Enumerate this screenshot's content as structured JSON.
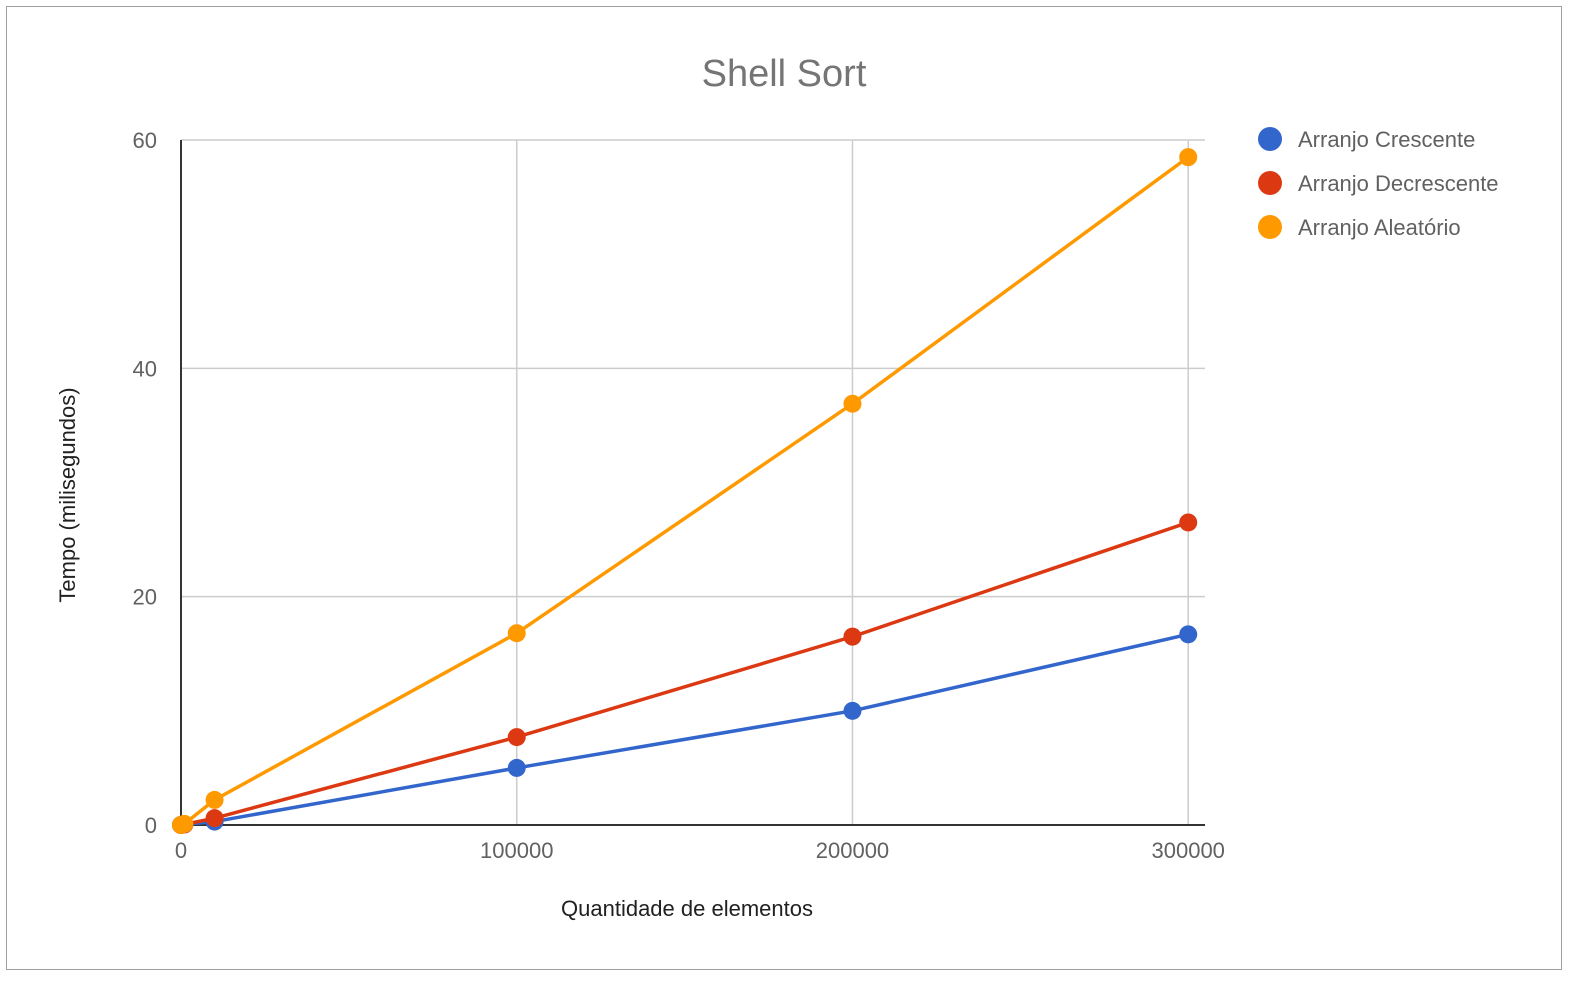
{
  "chart_data": {
    "type": "line",
    "title": "Shell Sort",
    "xlabel": "Quantidade de elementos",
    "ylabel": "Tempo (milisegundos)",
    "xlim": [
      0,
      305000
    ],
    "ylim": [
      0,
      60
    ],
    "x_ticks": [
      "0",
      "100000",
      "200000",
      "300000"
    ],
    "y_ticks": [
      "0",
      "20",
      "40",
      "60"
    ],
    "grid": true,
    "legend_position": "right",
    "x": [
      0,
      1000,
      10000,
      100000,
      200000,
      300000
    ],
    "series": [
      {
        "name": "Arranjo Crescente",
        "color": "#3366cc",
        "values": [
          0,
          0.05,
          0.3,
          5,
          10,
          16.7
        ]
      },
      {
        "name": "Arranjo Decrescente",
        "color": "#dc3912",
        "values": [
          0,
          0.05,
          0.6,
          7.7,
          16.5,
          26.5
        ]
      },
      {
        "name": "Arranjo Aleatório",
        "color": "#ff9900",
        "values": [
          0,
          0.1,
          2.2,
          16.8,
          36.9,
          58.5
        ]
      }
    ]
  }
}
